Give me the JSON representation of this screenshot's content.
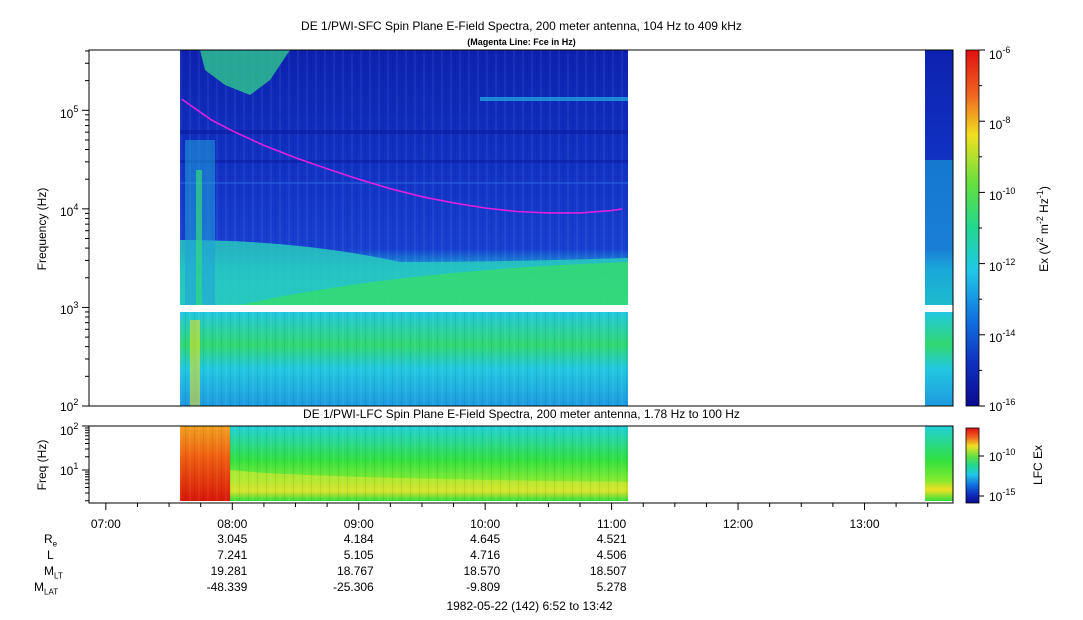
{
  "colors": {
    "background": "#ffffff",
    "noise_blue": "#1030c8",
    "deep_blue": "#0a1a9c",
    "cyan": "#19d2dc",
    "green": "#28e050",
    "yellow": "#f0f020",
    "orange": "#f08020",
    "red": "#e02010",
    "fce_line": "#e020e0"
  },
  "chart_data": [
    {
      "type": "heatmap",
      "title": "DE 1/PWI-SFC  Spin Plane E-Field Spectra, 200 meter antenna, 104 Hz to 409 kHz",
      "subtitle": "(Magenta Line: Fce in Hz)",
      "xlabel": "",
      "ylabel": "Frequency (Hz)",
      "yscale": "log",
      "ylim": [
        100,
        409000
      ],
      "yticks": [
        "10^2",
        "10^3",
        "10^4",
        "10^5"
      ],
      "x_time_range": [
        "06:52",
        "13:42"
      ],
      "data_segments": [
        {
          "start": "07:36",
          "end": "11:07"
        },
        {
          "start": "13:28",
          "end": "13:42"
        }
      ],
      "gap_band_hz": [
        1000,
        1250
      ],
      "colorbar": {
        "label": "Ex (V^2 m^-2 Hz^-1)",
        "scale": "log",
        "range": [
          1e-16,
          1e-06
        ],
        "ticks": [
          "10^-6",
          "10^-8",
          "10^-10",
          "10^-12",
          "10^-14",
          "10^-16"
        ]
      },
      "fce_line": {
        "name": "Fce in Hz",
        "time": [
          "07:36",
          "07:50",
          "08:00",
          "08:15",
          "08:30",
          "08:45",
          "09:00",
          "09:15",
          "09:30",
          "09:45",
          "10:00",
          "10:15",
          "10:30",
          "10:45",
          "11:00",
          "11:05"
        ],
        "hz": [
          130000,
          80000,
          62000,
          44000,
          33000,
          25500,
          20000,
          16000,
          13300,
          11500,
          10200,
          9400,
          9100,
          9100,
          9600,
          10000
        ]
      }
    },
    {
      "type": "heatmap",
      "title": "DE 1/PWI-LFC  Spin Plane E-Field Spectra, 200 meter antenna, 1.78 Hz to 100 Hz",
      "xlabel": "",
      "ylabel": "Freq (Hz)",
      "yscale": "log",
      "ylim": [
        1.78,
        100
      ],
      "yticks": [
        "10^1",
        "10^2"
      ],
      "x_time_range": [
        "06:52",
        "13:42"
      ],
      "xticks": [
        "07:00",
        "08:00",
        "09:00",
        "10:00",
        "11:00",
        "12:00",
        "13:00"
      ],
      "colorbar": {
        "label": "LFC Ex",
        "scale": "log",
        "ticks": [
          "10^-10",
          "10^-15"
        ]
      }
    }
  ],
  "ephemeris": {
    "rows": [
      {
        "label": "R",
        "sub": "e",
        "values": [
          "3.045",
          "4.184",
          "4.645",
          "4.521"
        ]
      },
      {
        "label": "L",
        "sub": "",
        "values": [
          "7.241",
          "5.105",
          "4.716",
          "4.506"
        ]
      },
      {
        "label": "M",
        "sub": "LT",
        "values": [
          "19.281",
          "18.767",
          "18.570",
          "18.507"
        ]
      },
      {
        "label": "M",
        "sub": "LAT",
        "values": [
          "-48.339",
          "-25.306",
          "-9.809",
          "5.278"
        ]
      }
    ],
    "value_times": [
      "08:00",
      "09:00",
      "10:00",
      "11:00"
    ],
    "footer": "1982-05-22 (142) 6:52 to 13:42"
  }
}
